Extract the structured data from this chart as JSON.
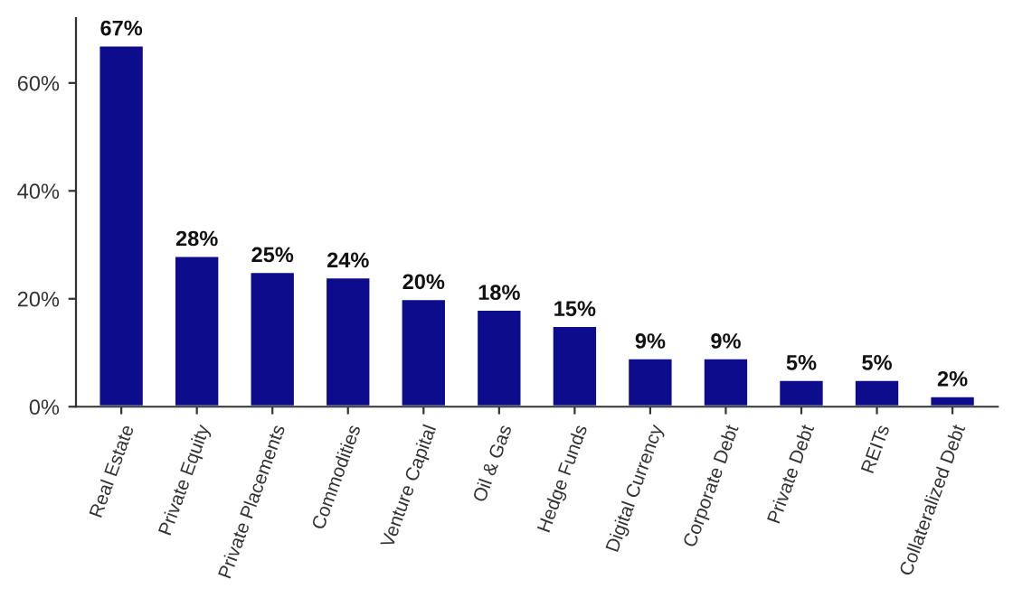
{
  "chart_data": {
    "type": "bar",
    "categories": [
      "Real Estate",
      "Private Equity",
      "Private Placements",
      "Commodities",
      "Venture Capital",
      "Oil & Gas",
      "Hedge Funds",
      "Digital Currency",
      "Corporate Debt",
      "Private Debt",
      "REITs",
      "Collateralized Debt"
    ],
    "values": [
      67,
      28,
      25,
      24,
      20,
      18,
      15,
      9,
      9,
      5,
      5,
      2
    ],
    "value_labels": [
      "67%",
      "28%",
      "25%",
      "24%",
      "20%",
      "18%",
      "15%",
      "9%",
      "9%",
      "5%",
      "5%",
      "2%"
    ],
    "color": "#0c0c8c",
    "ylim": [
      0,
      72
    ],
    "yticks": [
      {
        "value": 0,
        "label": "0%"
      },
      {
        "value": 20,
        "label": "20%"
      },
      {
        "value": 40,
        "label": "40%"
      },
      {
        "value": 60,
        "label": "60%"
      }
    ],
    "grid": false
  }
}
